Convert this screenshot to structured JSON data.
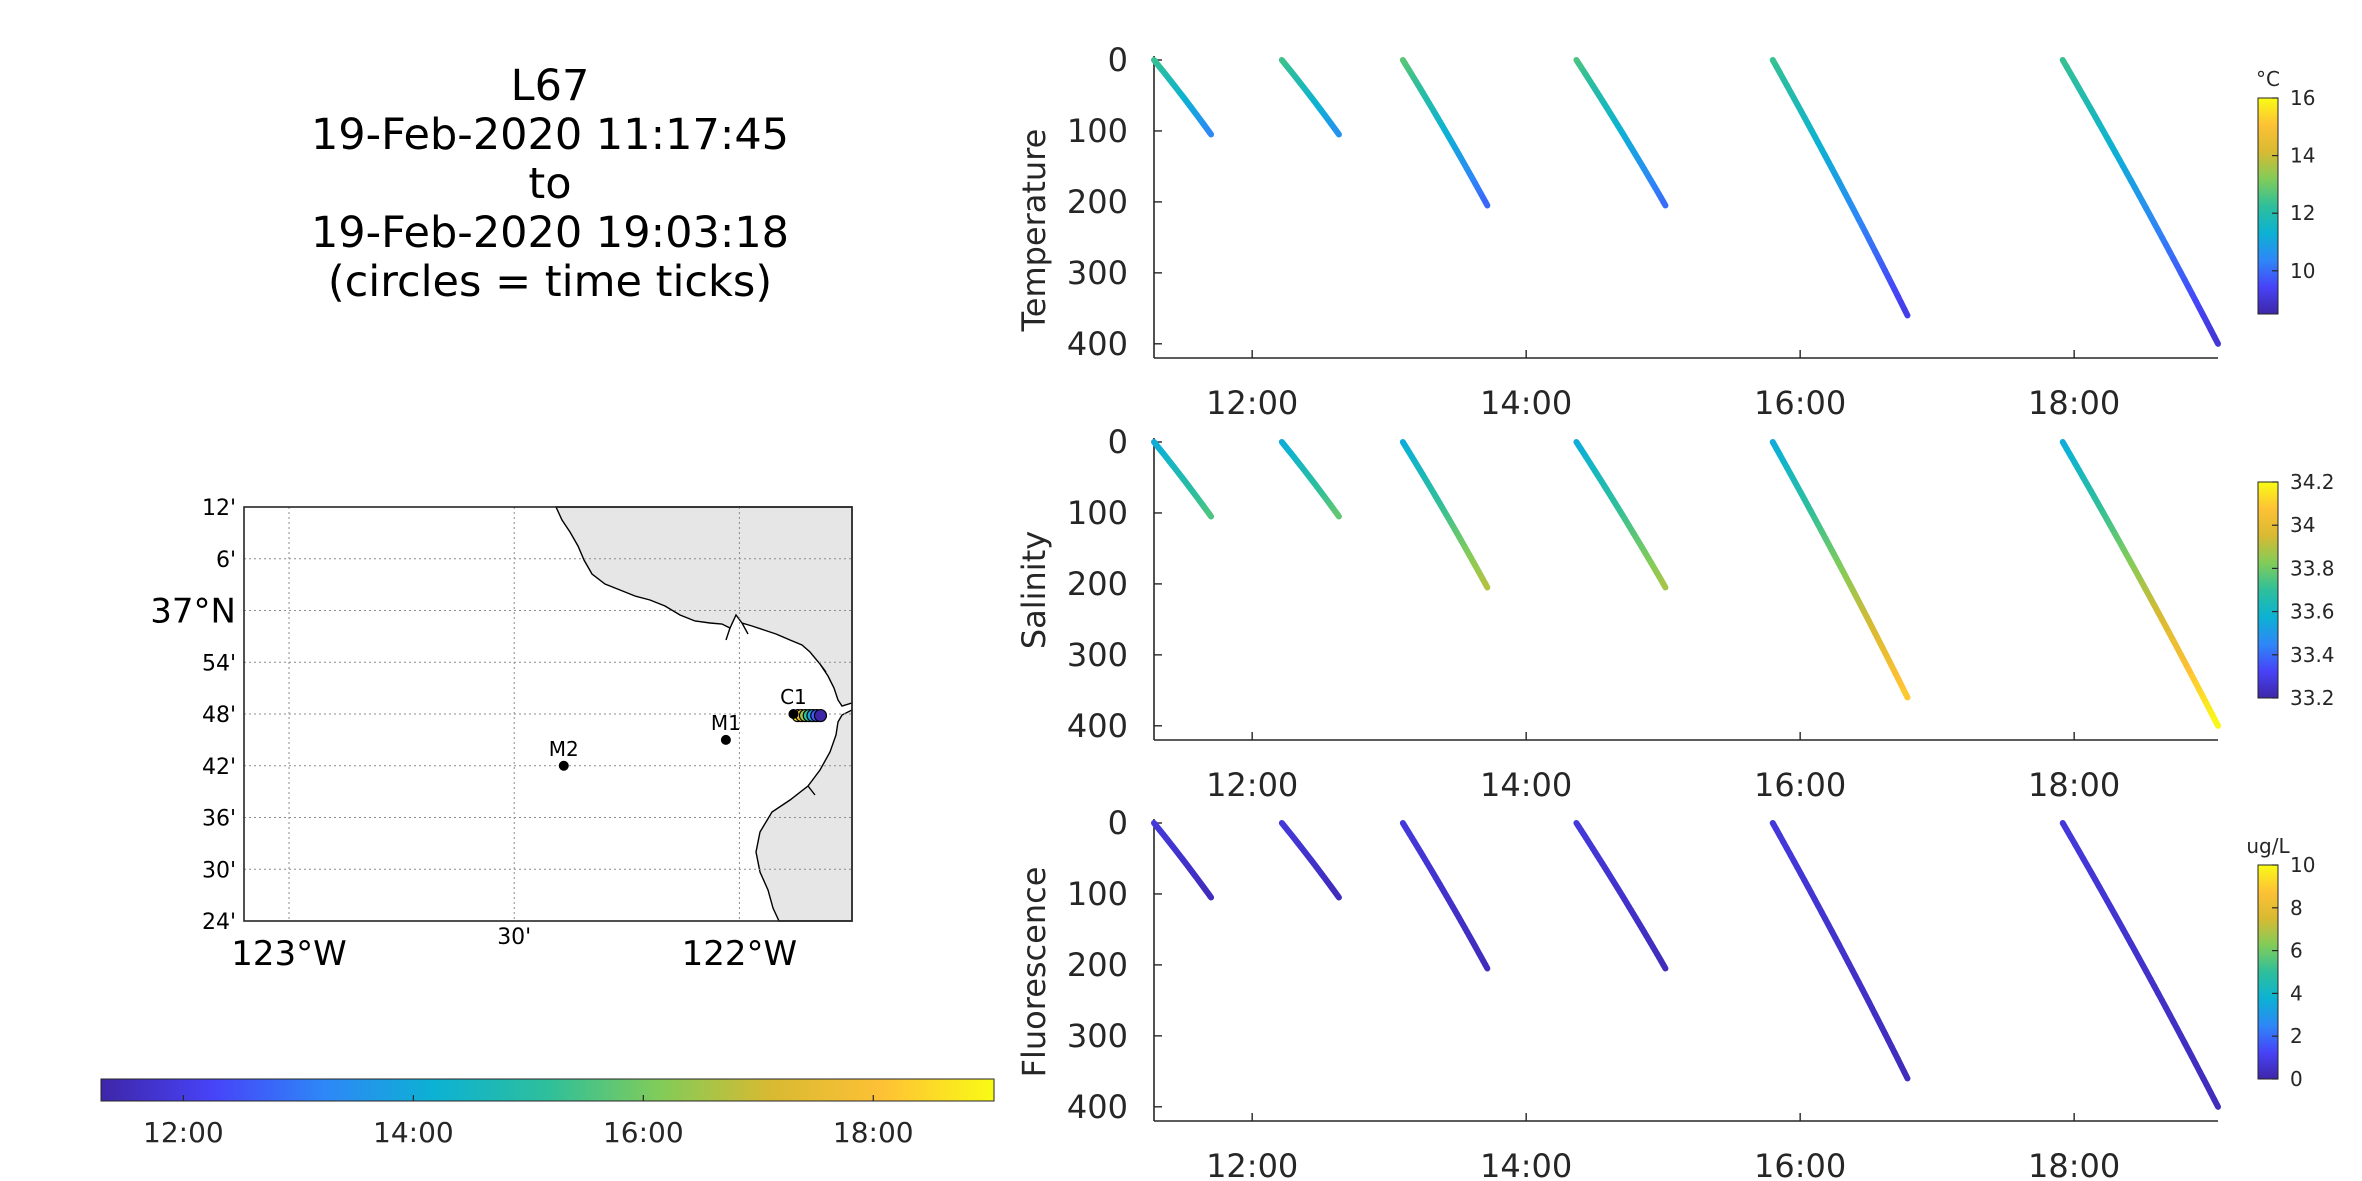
{
  "title_lines": [
    "L67",
    "19-Feb-2020 11:17:45",
    "to",
    "19-Feb-2020 19:03:18",
    "(circles = time ticks)"
  ],
  "chart_data": [
    {
      "type": "scatter",
      "name": "temperature-section",
      "ylabel": "Temperature",
      "x_ticks": [
        "12:00",
        "14:00",
        "16:00",
        "18:00"
      ],
      "y_ticks": [
        "0",
        "100",
        "200",
        "300",
        "400"
      ],
      "ylim": [
        0,
        420
      ],
      "xlim": [
        "11:17",
        "19:03"
      ],
      "y_reversed": true,
      "colorbar": {
        "unit": "°C",
        "range": [
          8.5,
          16
        ],
        "ticks": [
          "10",
          "12",
          "14",
          "16"
        ],
        "tick_values": [
          10,
          12,
          14,
          16
        ]
      },
      "profiles": [
        {
          "t_start": "11:17",
          "t_end": "11:42",
          "depth": 105,
          "v_surface": 12.4,
          "v_bottom": 10.4
        },
        {
          "t_start": "12:13",
          "t_end": "12:38",
          "depth": 105,
          "v_surface": 12.5,
          "v_bottom": 10.6
        },
        {
          "t_start": "13:06",
          "t_end": "13:43",
          "depth": 205,
          "v_surface": 12.8,
          "v_bottom": 9.9
        },
        {
          "t_start": "14:22",
          "t_end": "15:01",
          "depth": 205,
          "v_surface": 12.6,
          "v_bottom": 10.0
        },
        {
          "t_start": "15:48",
          "t_end": "16:47",
          "depth": 360,
          "v_surface": 12.4,
          "v_bottom": 9.2
        },
        {
          "t_start": "17:55",
          "t_end": "19:03",
          "depth": 400,
          "v_surface": 12.4,
          "v_bottom": 9.0
        }
      ]
    },
    {
      "type": "scatter",
      "name": "salinity-section",
      "ylabel": "Salinity",
      "x_ticks": [
        "12:00",
        "14:00",
        "16:00",
        "18:00"
      ],
      "y_ticks": [
        "0",
        "100",
        "200",
        "300",
        "400"
      ],
      "ylim": [
        0,
        420
      ],
      "xlim": [
        "11:17",
        "19:03"
      ],
      "y_reversed": true,
      "colorbar": {
        "unit": "",
        "range": [
          33.2,
          34.2
        ],
        "ticks": [
          "34.2",
          "34",
          "33.8",
          "33.6",
          "33.4",
          "33.2"
        ],
        "tick_values": [
          34.2,
          34.0,
          33.8,
          33.6,
          33.4,
          33.2
        ]
      },
      "profiles": [
        {
          "t_start": "11:17",
          "t_end": "11:42",
          "depth": 105,
          "v_surface": 33.55,
          "v_bottom": 33.75
        },
        {
          "t_start": "12:13",
          "t_end": "12:38",
          "depth": 105,
          "v_surface": 33.55,
          "v_bottom": 33.78
        },
        {
          "t_start": "13:06",
          "t_end": "13:43",
          "depth": 205,
          "v_surface": 33.55,
          "v_bottom": 33.9
        },
        {
          "t_start": "14:22",
          "t_end": "15:01",
          "depth": 205,
          "v_surface": 33.55,
          "v_bottom": 33.88
        },
        {
          "t_start": "15:48",
          "t_end": "16:47",
          "depth": 360,
          "v_surface": 33.55,
          "v_bottom": 34.1
        },
        {
          "t_start": "17:55",
          "t_end": "19:03",
          "depth": 400,
          "v_surface": 33.55,
          "v_bottom": 34.2
        }
      ]
    },
    {
      "type": "scatter",
      "name": "fluorescence-section",
      "ylabel": "Fluorescence",
      "x_ticks": [
        "12:00",
        "14:00",
        "16:00",
        "18:00"
      ],
      "y_ticks": [
        "0",
        "100",
        "200",
        "300",
        "400"
      ],
      "ylim": [
        0,
        420
      ],
      "xlim": [
        "11:17",
        "19:03"
      ],
      "y_reversed": true,
      "colorbar": {
        "unit": "ug/L",
        "range": [
          0,
          10
        ],
        "ticks": [
          "10",
          "8",
          "6",
          "4",
          "2",
          "0"
        ],
        "tick_values": [
          10,
          8,
          6,
          4,
          2,
          0
        ]
      },
      "profiles": [
        {
          "t_start": "11:17",
          "t_end": "11:42",
          "depth": 105,
          "v_surface": 0.8,
          "v_bottom": 0.3
        },
        {
          "t_start": "12:13",
          "t_end": "12:38",
          "depth": 105,
          "v_surface": 0.8,
          "v_bottom": 0.3
        },
        {
          "t_start": "13:06",
          "t_end": "13:43",
          "depth": 205,
          "v_surface": 0.8,
          "v_bottom": 0.3
        },
        {
          "t_start": "14:22",
          "t_end": "15:01",
          "depth": 205,
          "v_surface": 0.8,
          "v_bottom": 0.3
        },
        {
          "t_start": "15:48",
          "t_end": "16:47",
          "depth": 360,
          "v_surface": 0.8,
          "v_bottom": 0.3
        },
        {
          "t_start": "17:55",
          "t_end": "19:03",
          "depth": 400,
          "v_surface": 0.8,
          "v_bottom": 0.3
        }
      ]
    },
    {
      "type": "scatter",
      "name": "track-map",
      "lon_ticks": [
        "123°W",
        "30'",
        "122°W"
      ],
      "lon_tick_values": [
        -123.0,
        -122.5,
        -122.0
      ],
      "lat_ticks": [
        "12'",
        "6'",
        "37°N",
        "54'",
        "48'",
        "42'",
        "36'",
        "30'",
        "24'"
      ],
      "lat_tick_values": [
        37.2,
        37.1,
        37.0,
        36.9,
        36.8,
        36.7,
        36.6,
        36.5,
        36.4
      ],
      "lon_range": [
        -123.1,
        -121.75
      ],
      "lat_range": [
        36.4,
        37.2
      ],
      "stations": [
        {
          "label": "M2",
          "lon": -122.39,
          "lat": 36.7
        },
        {
          "label": "M1",
          "lon": -122.03,
          "lat": 36.75
        },
        {
          "label": "C1",
          "lon": -121.88,
          "lat": 36.8
        }
      ],
      "track": {
        "lon_range": [
          -121.87,
          -121.82
        ],
        "lat": 36.797
      }
    }
  ],
  "time_colorbar": {
    "ticks": [
      "12:00",
      "14:00",
      "16:00",
      "18:00"
    ],
    "range": [
      "11:17",
      "19:03"
    ]
  },
  "colormap": [
    "#3e26a8",
    "#4743f8",
    "#2e87f7",
    "#0cb2d3",
    "#2ebf9b",
    "#81cc59",
    "#d8ba32",
    "#fec135",
    "#f9fb15"
  ],
  "colors": {
    "land": "#e6e6e6",
    "station": "#000000",
    "axis": "#262626",
    "grid": "#8c8c8c"
  }
}
